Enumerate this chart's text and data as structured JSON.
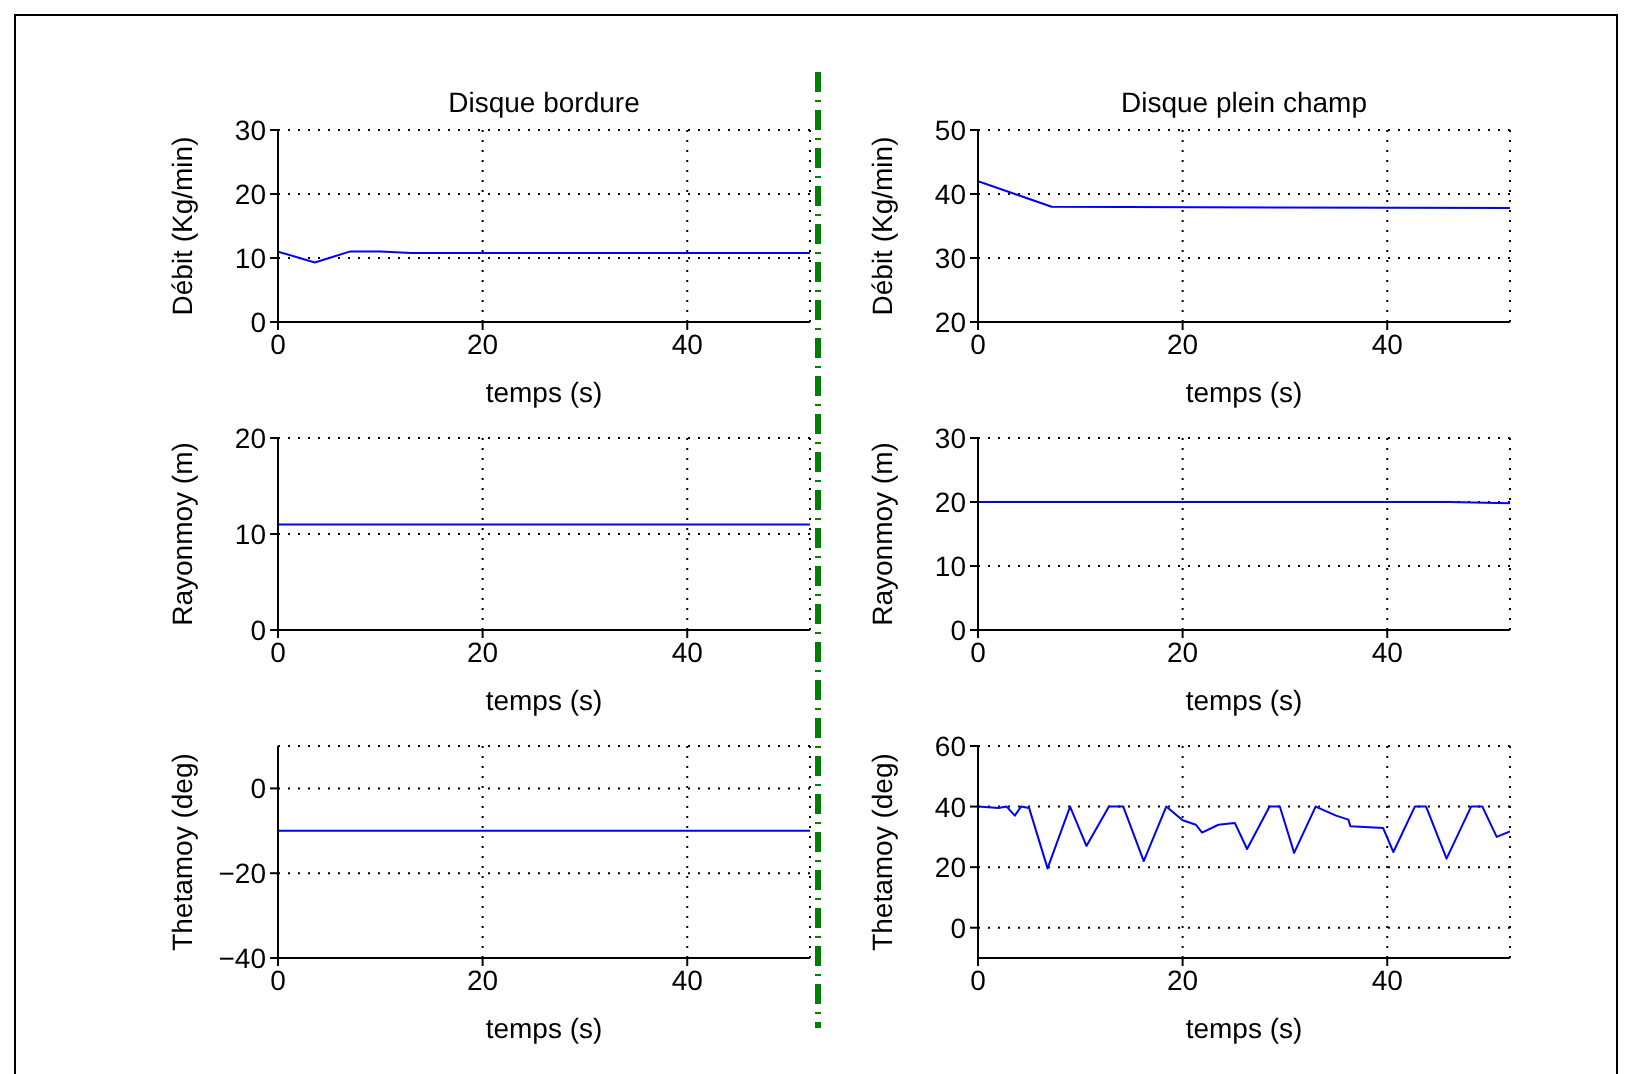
{
  "chart_data": [
    {
      "type": "line",
      "title": "Disque bordure",
      "xlabel": "temps (s)",
      "ylabel": "Débit (Kg/min)",
      "xlim": [
        0,
        52
      ],
      "xticks": [
        0,
        20,
        40
      ],
      "ylim": [
        0,
        30
      ],
      "yticks": [
        0,
        10,
        20,
        30
      ],
      "grid": true,
      "line_style": "solid",
      "x": [
        0,
        3.6,
        7,
        10,
        13,
        52
      ],
      "series": [
        {
          "color": "#0000ff",
          "values": [
            11,
            9.3,
            11,
            11,
            10.8,
            10.8
          ]
        }
      ]
    },
    {
      "type": "line",
      "title": "Disque plein champ",
      "xlabel": "temps (s)",
      "ylabel": "Débit (Kg/min)",
      "xlim": [
        0,
        52
      ],
      "xticks": [
        0,
        20,
        40
      ],
      "ylim": [
        20,
        50
      ],
      "yticks": [
        20,
        30,
        40,
        50
      ],
      "grid": true,
      "line_style": "solid",
      "x": [
        0,
        7.2,
        52
      ],
      "series": [
        {
          "color": "#0000ff",
          "values": [
            42,
            38,
            37.8
          ]
        }
      ]
    },
    {
      "type": "line",
      "xlabel": "temps (s)",
      "ylabel": "Rayonmoy (m)",
      "xlim": [
        0,
        52
      ],
      "xticks": [
        0,
        20,
        40
      ],
      "ylim": [
        0,
        20
      ],
      "yticks": [
        0,
        10,
        20
      ],
      "grid": true,
      "line_style": "solid",
      "x": [
        0,
        52
      ],
      "series": [
        {
          "color": "#0000ff",
          "values": [
            11,
            11
          ]
        }
      ]
    },
    {
      "type": "line",
      "xlabel": "temps (s)",
      "ylabel": "Rayonmoy (m)",
      "xlim": [
        0,
        52
      ],
      "xticks": [
        0,
        20,
        40
      ],
      "ylim": [
        0,
        30
      ],
      "yticks": [
        0,
        10,
        20,
        30
      ],
      "grid": true,
      "line_style": "solid",
      "x": [
        0,
        46,
        52
      ],
      "series": [
        {
          "color": "#0000ff",
          "values": [
            20,
            20,
            19.8
          ]
        }
      ]
    },
    {
      "type": "line",
      "xlabel": "temps (s)",
      "ylabel": "Thetamoy (deg)",
      "xlim": [
        0,
        52
      ],
      "xticks": [
        0,
        20,
        40
      ],
      "ylim": [
        -40,
        10
      ],
      "yticks": [
        -40,
        -20,
        0
      ],
      "grid": true,
      "line_style": "solid",
      "x": [
        0,
        52
      ],
      "series": [
        {
          "color": "#0000ff",
          "values": [
            -10,
            -10
          ]
        }
      ]
    },
    {
      "type": "line",
      "xlabel": "temps (s)",
      "ylabel": "Thetamoy (deg)",
      "xlim": [
        0,
        52
      ],
      "xticks": [
        0,
        20,
        40
      ],
      "ylim": [
        -10,
        60
      ],
      "yticks": [
        0,
        20,
        40,
        60
      ],
      "grid": true,
      "line_style": "solid",
      "x": [
        0,
        2,
        2.8,
        3.6,
        4.2,
        5,
        6.8,
        9,
        10.6,
        12.8,
        14.2,
        16.2,
        18.4,
        20,
        21.3,
        21.9,
        23.5,
        25.1,
        26.3,
        28.5,
        29.5,
        30.9,
        33,
        35,
        36.2,
        36.4,
        39.6,
        40.6,
        42.7,
        43.8,
        45.8,
        48.2,
        49.3,
        50.7,
        52
      ],
      "series": [
        {
          "color": "#0000ff",
          "values": [
            40,
            39.5,
            40,
            37,
            40,
            39.5,
            19.6,
            40,
            27,
            40,
            40,
            22,
            40,
            35.5,
            34,
            31.4,
            34,
            34.6,
            26,
            40,
            40,
            24.7,
            40,
            37,
            35.7,
            33.5,
            32.9,
            25,
            40,
            40,
            22.8,
            40,
            40,
            30,
            31.8
          ]
        }
      ]
    }
  ]
}
